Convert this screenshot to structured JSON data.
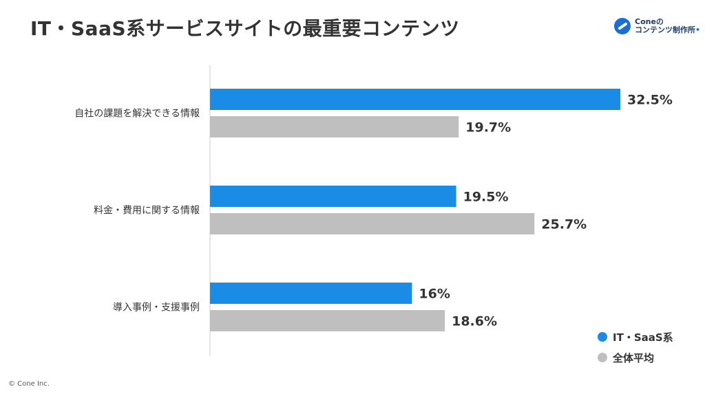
{
  "title": "IT・SaaS系サービスサイトの最重要コンテンツ",
  "logo": {
    "icon": "cone-logo-icon",
    "line1_main": "Cone",
    "line1_suffix": "の",
    "line2": "コンテンツ制作所"
  },
  "footer": "© Cone Inc.",
  "chart_data": {
    "type": "bar",
    "orientation": "horizontal",
    "categories": [
      "自社の課題を解決できる情報",
      "料金・費用に関する情報",
      "導入事例・支援事例"
    ],
    "series": [
      {
        "name": "IT・SaaS系",
        "values": [
          32.5,
          19.5,
          16
        ],
        "labels": [
          "32.5%",
          "19.5%",
          "16%"
        ],
        "color": "#1a8ce6"
      },
      {
        "name": "全体平均",
        "values": [
          19.7,
          25.7,
          18.6
        ],
        "labels": [
          "19.7%",
          "25.7%",
          "18.6%"
        ],
        "color": "#bfbfbf"
      }
    ],
    "xlim": [
      0,
      35
    ],
    "grid": false,
    "legend": "bottom-right"
  }
}
